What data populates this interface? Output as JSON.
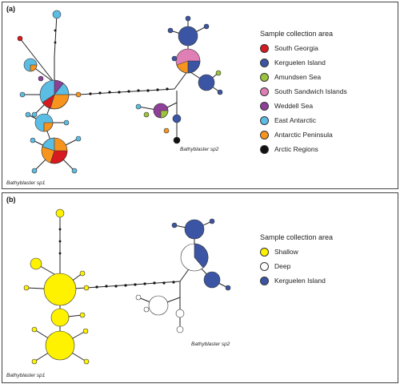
{
  "panels": [
    {
      "label": "(a)",
      "legend_title": "Sample collection area",
      "legend": [
        {
          "label": "South Georgia",
          "color": "#d71920"
        },
        {
          "label": "Kerguelen Island",
          "color": "#3b55a4"
        },
        {
          "label": "Amundsen Sea",
          "color": "#9bc43a"
        },
        {
          "label": "South Sandwich Islands",
          "color": "#e07fb5"
        },
        {
          "label": "Weddell Sea",
          "color": "#8e3f98"
        },
        {
          "label": "East Antarctic",
          "color": "#5bbde4"
        },
        {
          "label": "Antarctic Peninsula",
          "color": "#f7941d"
        },
        {
          "label": "Arctic Regions",
          "color": "#111111"
        }
      ],
      "species_left": "Bathyblaster sp1",
      "species_right": "Bathyblaster sp2"
    },
    {
      "label": "(b)",
      "legend_title": "Sample collection area",
      "legend": [
        {
          "label": "Shallow",
          "color": "#fff200"
        },
        {
          "label": "Deep",
          "color": "#ffffff"
        },
        {
          "label": "Kerguelen Island",
          "color": "#3b55a4"
        }
      ],
      "species_left": "Bathyblaster sp1",
      "species_right": "Bathyblaster sp2"
    }
  ]
}
